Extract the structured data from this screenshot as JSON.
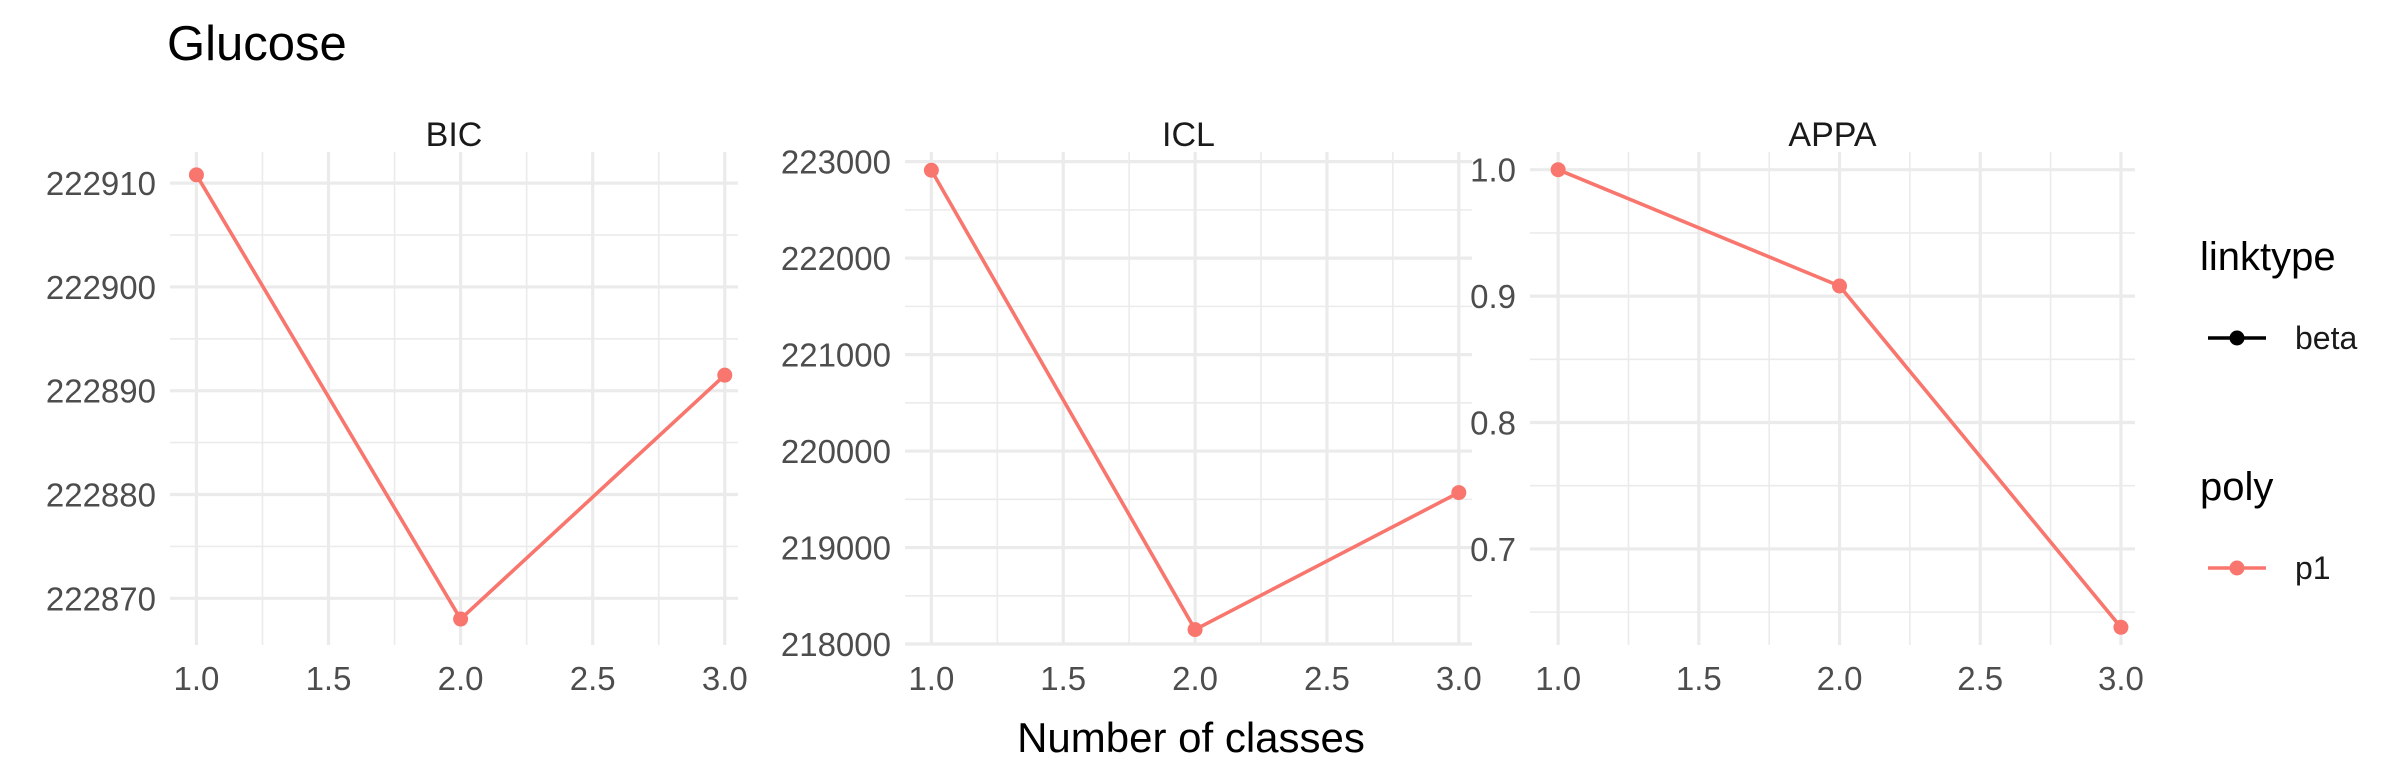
{
  "title": "Glucose",
  "x_axis_label": "Number of classes",
  "chart_data": [
    {
      "type": "line",
      "title": "BIC",
      "x": [
        1.0,
        2.0,
        3.0
      ],
      "series": [
        {
          "name": "p1",
          "values": [
            222910.8,
            222868.0,
            222891.5
          ]
        }
      ],
      "xlim": [
        0.9,
        3.05
      ],
      "ylim": [
        222865.5,
        222913.0
      ],
      "x_ticks": [
        "1.0",
        "1.5",
        "2.0",
        "2.5",
        "3.0"
      ],
      "y_ticks": [
        "222870",
        "222880",
        "222890",
        "222900",
        "222910"
      ],
      "color": "#f8766d"
    },
    {
      "type": "line",
      "title": "ICL",
      "x": [
        1.0,
        2.0,
        3.0
      ],
      "series": [
        {
          "name": "p1",
          "values": [
            222910.8,
            218150.0,
            219570.0
          ]
        }
      ],
      "xlim": [
        0.9,
        3.05
      ],
      "ylim": [
        217990.0,
        223100.0
      ],
      "x_ticks": [
        "1.0",
        "1.5",
        "2.0",
        "2.5",
        "3.0"
      ],
      "y_ticks": [
        "218000",
        "219000",
        "220000",
        "221000",
        "222000",
        "223000"
      ],
      "color": "#f8766d"
    },
    {
      "type": "line",
      "title": "APPA",
      "x": [
        1.0,
        2.0,
        3.0
      ],
      "series": [
        {
          "name": "p1",
          "values": [
            1.0,
            0.908,
            0.638
          ]
        }
      ],
      "xlim": [
        0.9,
        3.05
      ],
      "ylim": [
        0.624,
        1.014
      ],
      "x_ticks": [
        "1.0",
        "1.5",
        "2.0",
        "2.5",
        "3.0"
      ],
      "y_ticks": [
        "0.7",
        "0.8",
        "0.9",
        "1.0"
      ],
      "color": "#f8766d"
    }
  ],
  "legend": {
    "placement": "right",
    "groups": [
      {
        "title": "linktype",
        "items": [
          {
            "label": "beta",
            "color": "#000000"
          }
        ]
      },
      {
        "title": "poly",
        "items": [
          {
            "label": "p1",
            "color": "#f8766d"
          }
        ]
      }
    ]
  },
  "grid": true
}
